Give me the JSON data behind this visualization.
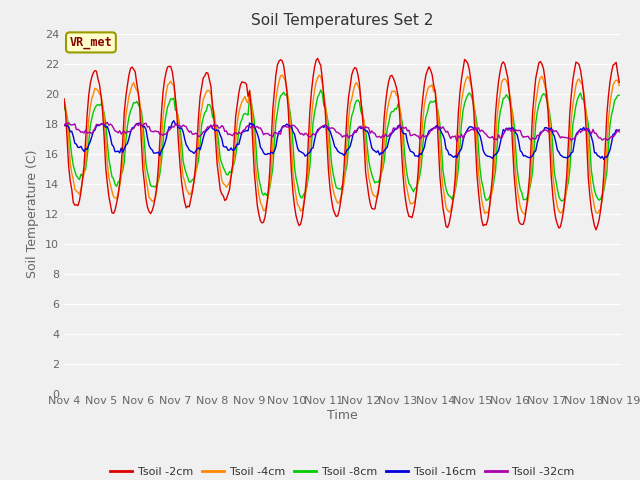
{
  "title": "Soil Temperatures Set 2",
  "xlabel": "Time",
  "ylabel": "Soil Temperature (C)",
  "ylim": [
    0,
    24
  ],
  "yticks": [
    0,
    2,
    4,
    6,
    8,
    10,
    12,
    14,
    16,
    18,
    20,
    22,
    24
  ],
  "xtick_labels": [
    "Nov 4",
    "Nov 5",
    "Nov 6",
    "Nov 7",
    "Nov 8",
    "Nov 9",
    "Nov 10",
    "Nov 11",
    "Nov 12",
    "Nov 13",
    "Nov 14",
    "Nov 15",
    "Nov 16",
    "Nov 17",
    "Nov 18",
    "Nov 19"
  ],
  "bg_color": "#f0f0f0",
  "plot_bg_color": "#f0f0f0",
  "grid_color": "#ffffff",
  "series_colors": {
    "2cm": "#dd0000",
    "4cm": "#ff8800",
    "8cm": "#00cc00",
    "16cm": "#0000dd",
    "32cm": "#aa00aa"
  },
  "annotation_text": "VR_met",
  "annotation_bg": "#ffffcc",
  "annotation_border": "#999900",
  "title_fontsize": 11,
  "axis_label_fontsize": 9,
  "tick_fontsize": 8,
  "legend_fontsize": 8,
  "linewidth": 1.0
}
